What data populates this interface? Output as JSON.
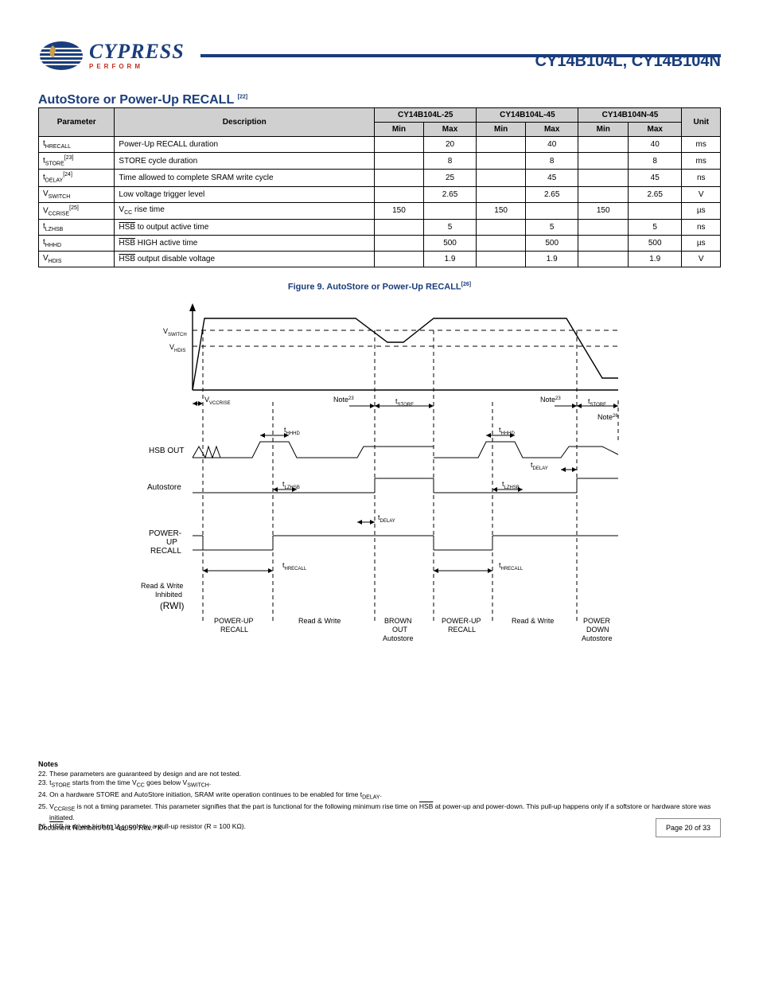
{
  "header": {
    "brand_top": "CYPRESS",
    "brand_sub": "PERFORM",
    "part": "CY14B104L, CY14B104N"
  },
  "section": {
    "title": "AutoStore or Power-Up RECALL"
  },
  "superscripts": {
    "title_ref": "[22]"
  },
  "table": {
    "head": {
      "param": "Parameter",
      "desc": "Description",
      "grp1": "CY14B104L-25",
      "grp2": "CY14B104L-45",
      "grp3": "CY14B104N-45",
      "min": "Min",
      "max": "Max",
      "unit": "Unit"
    },
    "rows": [
      {
        "p": "t",
        "psub": "HRECALL",
        "desc": "Power-Up RECALL duration",
        "v": [
          "",
          "20",
          "",
          "40",
          "",
          "40"
        ],
        "u": "ms"
      },
      {
        "p": "t",
        "psub": "STORE",
        "sup": "[23]",
        "desc": "STORE cycle duration",
        "v": [
          "",
          "8",
          "",
          "8",
          "",
          "8"
        ],
        "u": "ms"
      },
      {
        "p": "t",
        "psub": "DELAY",
        "sup": "[24]",
        "desc": "Time allowed to complete SRAM write cycle",
        "v": [
          "",
          "25",
          "",
          "45",
          "",
          "45"
        ],
        "u": "ns"
      },
      {
        "p": "V",
        "psub": "SWITCH",
        "desc": "Low voltage trigger level",
        "v": [
          "",
          "2.65",
          "",
          "2.65",
          "",
          "2.65"
        ],
        "u": "V"
      },
      {
        "p": "V",
        "psub": "CCRISE",
        "sup": "[25]",
        "desc": "V<sub>CC</sub> rise time",
        "v": [
          "150",
          "",
          "150",
          "",
          "150",
          ""
        ],
        "u": "µs"
      },
      {
        "p": "t",
        "psub": "LZHSB",
        "desc": "<span class=\"over\">HSB</span> to output active time",
        "v": [
          "",
          "5",
          "",
          "5",
          "",
          "5"
        ],
        "u": "ns"
      },
      {
        "p": "t",
        "psub": "HHHD",
        "desc": "<span class=\"over\">HSB</span> HIGH active time",
        "v": [
          "",
          "500",
          "",
          "500",
          "",
          "500"
        ],
        "u": "µs"
      },
      {
        "p": "V",
        "psub": "HDIS",
        "desc": "<span class=\"over\">HSB</span> output disable voltage",
        "v": [
          "",
          "1.9",
          "",
          "1.9",
          "",
          "1.9"
        ],
        "u": "V"
      }
    ]
  },
  "figure": {
    "title": "Figure 9. AutoStore or Power-Up RECALL",
    "title_sup": "[26]",
    "labels": {
      "vswitch": "V",
      "vswitch_sub": "SWITCH",
      "vhdis": "V",
      "vhdis_sub": "HDIS",
      "vccrise": "V",
      "vccrise_sub": "VCCRISE",
      "note23": "Note",
      "note23_sup": "23",
      "note26": "Note",
      "note26_sup": "26",
      "tstore": "t",
      "tstore_sub": "STORE",
      "thhhd": "t",
      "thhhd_sub": "HHHD",
      "tlzhsb": "t",
      "tlzhsb_sub": "LZHSB",
      "tdelay": "t",
      "tdelay_sub": "DELAY",
      "threcall": "t",
      "threcall_sub": "HRECALL",
      "hsb_out": "HSB OUT",
      "autostore": "Autostore",
      "prr1": "POWER-",
      "prr2": "UP",
      "prr3": "RECALL",
      "rwi1": "Read & Write",
      "rwi2": "Inhibited",
      "rwi3": "(RWI)",
      "phase": [
        "POWER-UP",
        "RECALL",
        "Read & Write",
        "BROWN",
        "OUT",
        "Autostore",
        "POWER-UP",
        "RECALL",
        "Read & Write",
        "POWER",
        "DOWN",
        "Autostore"
      ]
    }
  },
  "notes": {
    "head": "Notes",
    "items": [
      "22. These parameters are guaranteed by design and are not tested.",
      "23. t<sub>STORE</sub> starts from the time V<sub>CC</sub> goes below V<sub>SWITCH</sub>.",
      "24. On a hardware STORE and AutoStore initiation, SRAM write operation continues to be enabled for time t<sub>DELAY</sub>.",
      "25. V<sub>CCRISE</sub> is not a timing parameter. This parameter signifies that the part is functional for the following minimum rise time on <span class=\"over\">HSB</span> at power-up and power-down. This pull-up happens only if a softstore or hardware store was initiated.",
      "26. <span class=\"over\">HSB</span> is driven high to V<sub>CC</sub> only by a pull-up resistor (R = 100 KΩ)."
    ]
  },
  "footer": {
    "doc": "Document Number: 001-44059 Rev. *K",
    "page": "Page 20 of 33"
  },
  "colors": {
    "brand_blue": "#1a3d7c",
    "brand_red": "#c03020",
    "header_fill": "#d0d0d0"
  }
}
